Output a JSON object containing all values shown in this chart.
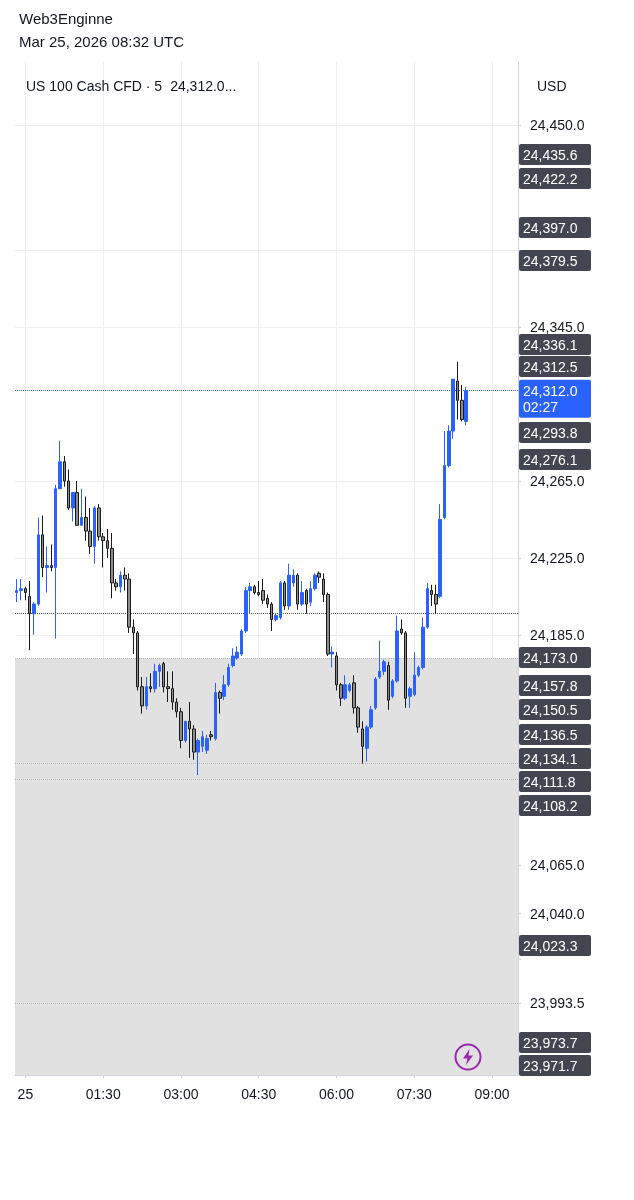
{
  "chart_data": {
    "type": "candlestick",
    "title": "Web3Enginne",
    "subtitle": "Mar 25, 2026 08:32 UTC",
    "ylabel": "USD",
    "annotations": [
      "US 100 Cash CFD · 5",
      "24,312.0...",
      "24,435.6",
      "24,422.2",
      "24,397.0",
      "24,379.5",
      "24,336.1",
      "24,312.5",
      "24,293.8",
      "24,276.1",
      "24,173.0",
      "24,157.8",
      "24,150.5",
      "24,136.5",
      "24,134.1",
      "24,111.8",
      "24,108.2",
      "24,023.3",
      "23,973.7",
      "23,971.7"
    ],
    "x": [
      "2026-03-24T23:50",
      "2026-03-24T23:55",
      "2026-03-25T00:00",
      "2026-03-25T00:05",
      "2026-03-25T00:10",
      "2026-03-25T00:15",
      "2026-03-25T00:20",
      "2026-03-25T00:25",
      "2026-03-25T00:30",
      "2026-03-25T00:35",
      "2026-03-25T00:40",
      "2026-03-25T00:45",
      "2026-03-25T00:50",
      "2026-03-25T00:55",
      "2026-03-25T01:00",
      "2026-03-25T01:05",
      "2026-03-25T01:10",
      "2026-03-25T01:15",
      "2026-03-25T01:20",
      "2026-03-25T01:25",
      "2026-03-25T01:30",
      "2026-03-25T01:35",
      "2026-03-25T01:40",
      "2026-03-25T01:45",
      "2026-03-25T01:50",
      "2026-03-25T01:55",
      "2026-03-25T02:00",
      "2026-03-25T02:05",
      "2026-03-25T02:10",
      "2026-03-25T02:15",
      "2026-03-25T02:20",
      "2026-03-25T02:25",
      "2026-03-25T02:30",
      "2026-03-25T02:35",
      "2026-03-25T02:40",
      "2026-03-25T02:45",
      "2026-03-25T02:50",
      "2026-03-25T02:55",
      "2026-03-25T03:00",
      "2026-03-25T03:05",
      "2026-03-25T03:10",
      "2026-03-25T03:15",
      "2026-03-25T03:20",
      "2026-03-25T03:25",
      "2026-03-25T03:30",
      "2026-03-25T03:35",
      "2026-03-25T03:40",
      "2026-03-25T03:45",
      "2026-03-25T03:50",
      "2026-03-25T03:55",
      "2026-03-25T04:00",
      "2026-03-25T04:05",
      "2026-03-25T04:10",
      "2026-03-25T04:15",
      "2026-03-25T04:20",
      "2026-03-25T04:25",
      "2026-03-25T04:30",
      "2026-03-25T04:35",
      "2026-03-25T04:40",
      "2026-03-25T04:45",
      "2026-03-25T04:50",
      "2026-03-25T04:55",
      "2026-03-25T05:00",
      "2026-03-25T05:05",
      "2026-03-25T05:10",
      "2026-03-25T05:15",
      "2026-03-25T05:20",
      "2026-03-25T05:25",
      "2026-03-25T05:30",
      "2026-03-25T05:35",
      "2026-03-25T05:40",
      "2026-03-25T05:45",
      "2026-03-25T05:50",
      "2026-03-25T05:55",
      "2026-03-25T06:00",
      "2026-03-25T06:05",
      "2026-03-25T06:10",
      "2026-03-25T06:15",
      "2026-03-25T06:20",
      "2026-03-25T06:25",
      "2026-03-25T06:30",
      "2026-03-25T06:35",
      "2026-03-25T06:40",
      "2026-03-25T06:45",
      "2026-03-25T06:50",
      "2026-03-25T06:55",
      "2026-03-25T07:00",
      "2026-03-25T07:05",
      "2026-03-25T07:10",
      "2026-03-25T07:15",
      "2026-03-25T07:20",
      "2026-03-25T07:25",
      "2026-03-25T07:30",
      "2026-03-25T07:35",
      "2026-03-25T07:40",
      "2026-03-25T07:45",
      "2026-03-25T07:50",
      "2026-03-25T07:55",
      "2026-03-25T08:00",
      "2026-03-25T08:05",
      "2026-03-25T08:10",
      "2026-03-25T08:15",
      "2026-03-25T08:20",
      "2026-03-25T08:25",
      "2026-03-25T08:30"
    ],
    "ohlc": [
      [
        24207,
        24214,
        24202,
        24208
      ],
      [
        24208,
        24214,
        24203,
        24209
      ],
      [
        24209,
        24210,
        24203,
        24207
      ],
      [
        24205,
        24213,
        24177,
        24196
      ],
      [
        24196,
        24202,
        24185,
        24201
      ],
      [
        24201,
        24246,
        24200,
        24237
      ],
      [
        24237,
        24247,
        24215,
        24220
      ],
      [
        24220,
        24231,
        24207,
        24221
      ],
      [
        24221,
        24232,
        24218,
        24220
      ],
      [
        24220,
        24263,
        24183,
        24261
      ],
      [
        24261,
        24286,
        24261,
        24275
      ],
      [
        24275,
        24278,
        24262,
        24265
      ],
      [
        24265,
        24271,
        24250,
        24251
      ],
      [
        24251,
        24259,
        24244,
        24259
      ],
      [
        24259,
        24265,
        24242,
        24242
      ],
      [
        24242,
        24261,
        24242,
        24246
      ],
      [
        24246,
        24257,
        24234,
        24239
      ],
      [
        24239,
        24251,
        24227,
        24231
      ],
      [
        24231,
        24252,
        24222,
        24251
      ],
      [
        24251,
        24253,
        24234,
        24236
      ],
      [
        24236,
        24238,
        24220,
        24234
      ],
      [
        24234,
        24240,
        24225,
        24230
      ],
      [
        24230,
        24238,
        24204,
        24212
      ],
      [
        24212,
        24214,
        24208,
        24210
      ],
      [
        24210,
        24218,
        24207,
        24216
      ],
      [
        24216,
        24220,
        24208,
        24214
      ],
      [
        24214,
        24217,
        24186,
        24189
      ],
      [
        24189,
        24193,
        24175,
        24186
      ],
      [
        24186,
        24187,
        24156,
        24158
      ],
      [
        24158,
        24163,
        24144,
        24148
      ],
      [
        24148,
        24163,
        24146,
        24158
      ],
      [
        24158,
        24165,
        24155,
        24157
      ],
      [
        24157,
        24170,
        24155,
        24166
      ],
      [
        24166,
        24170,
        24158,
        24169
      ],
      [
        24170,
        24171,
        24155,
        24158
      ],
      [
        24158,
        24166,
        24150,
        24157
      ],
      [
        24157,
        24166,
        24146,
        24150
      ],
      [
        24150,
        24152,
        24142,
        24145
      ],
      [
        24145,
        24147,
        24126,
        24130
      ],
      [
        24130,
        24140,
        24129,
        24140
      ],
      [
        24140,
        24150,
        24121,
        24136
      ],
      [
        24136,
        24138,
        24120,
        24124
      ],
      [
        24124,
        24131,
        24112,
        24130
      ],
      [
        24127,
        24135,
        24124,
        24132
      ],
      [
        24125,
        24133,
        24123,
        24131
      ],
      [
        24133,
        24135,
        24130,
        24132
      ],
      [
        24131,
        24160,
        24130,
        24155
      ],
      [
        24155,
        24156,
        24144,
        24152
      ],
      [
        24153,
        24164,
        24151,
        24159
      ],
      [
        24159,
        24170,
        24158,
        24168
      ],
      [
        24169,
        24178,
        24168,
        24174
      ],
      [
        24173,
        24179,
        24172,
        24176
      ],
      [
        24175,
        24188,
        24174,
        24187
      ],
      [
        24187,
        24210,
        24186,
        24208
      ],
      [
        24208,
        24212,
        24196,
        24210
      ],
      [
        24210,
        24211,
        24206,
        24207
      ],
      [
        24207,
        24213,
        24205,
        24206
      ],
      [
        24208,
        24214,
        24201,
        24203
      ],
      [
        24204,
        24206,
        24199,
        24201
      ],
      [
        24201,
        24202,
        24187,
        24193
      ],
      [
        24193,
        24196,
        24192,
        24195
      ],
      [
        24194,
        24213,
        24193,
        24212
      ],
      [
        24212,
        24213,
        24198,
        24200
      ],
      [
        24200,
        24222,
        24198,
        24216
      ],
      [
        24212,
        24219,
        24210,
        24216
      ],
      [
        24216,
        24217,
        24198,
        24201
      ],
      [
        24201,
        24213,
        24200,
        24207
      ],
      [
        24208,
        24209,
        24196,
        24201
      ],
      [
        24202,
        24213,
        24200,
        24209
      ],
      [
        24209,
        24217,
        24208,
        24216
      ],
      [
        24217,
        24218,
        24212,
        24215
      ],
      [
        24214,
        24217,
        24202,
        24206
      ],
      [
        24206,
        24207,
        24174,
        24175
      ],
      [
        24175,
        24179,
        24168,
        24176
      ],
      [
        24174,
        24176,
        24156,
        24159
      ],
      [
        24159,
        24160,
        24148,
        24152
      ],
      [
        24152,
        24164,
        24151,
        24159
      ],
      [
        24156,
        24160,
        24155,
        24159
      ],
      [
        24160,
        24164,
        24144,
        24147
      ],
      [
        24147,
        24148,
        24134,
        24137
      ],
      [
        24136,
        24140,
        24118,
        24127
      ],
      [
        24126,
        24138,
        24119,
        24137
      ],
      [
        24137,
        24148,
        24136,
        24146
      ],
      [
        24147,
        24163,
        24146,
        24162
      ],
      [
        24163,
        24182,
        24162,
        24166
      ],
      [
        24166,
        24172,
        24164,
        24171
      ],
      [
        24169,
        24171,
        24146,
        24151
      ],
      [
        24153,
        24162,
        24152,
        24161
      ],
      [
        24161,
        24195,
        24160,
        24187
      ],
      [
        24188,
        24193,
        24185,
        24186
      ],
      [
        24186,
        24187,
        24147,
        24152
      ],
      [
        24153,
        24158,
        24147,
        24157
      ],
      [
        24154,
        24176,
        24153,
        24164
      ],
      [
        24164,
        24169,
        24163,
        24168
      ],
      [
        24168,
        24194,
        24167,
        24189
      ],
      [
        24189,
        24212,
        24188,
        24209
      ],
      [
        24208,
        24211,
        24200,
        24206
      ],
      [
        24206,
        24211,
        24196,
        24201
      ],
      [
        24205,
        24253,
        24204,
        24245
      ],
      [
        24246,
        24291,
        24245,
        24273
      ],
      [
        24273,
        24294,
        24272,
        24291
      ],
      [
        24291,
        24318,
        24287,
        24318
      ],
      [
        24317,
        24327,
        24297,
        24307
      ],
      [
        24307,
        24315,
        24296,
        24297
      ],
      [
        24296,
        24314,
        24294,
        24312.0
      ]
    ],
    "xlim": [
      "2026-03-24T23:48",
      "2026-03-25T09:30"
    ],
    "xticks": [
      {
        "value": "2026-03-25T00:00",
        "label": "25"
      },
      {
        "value": "2026-03-25T01:30",
        "label": "01:30"
      },
      {
        "value": "2026-03-25T03:00",
        "label": "03:00"
      },
      {
        "value": "2026-03-25T04:30",
        "label": "04:30"
      },
      {
        "value": "2026-03-25T06:00",
        "label": "06:00"
      },
      {
        "value": "2026-03-25T07:30",
        "label": "07:30"
      },
      {
        "value": "2026-03-25T09:00",
        "label": "09:00"
      }
    ],
    "ylim": [
      23956,
      24483
    ],
    "yticks": [
      {
        "value": 24450,
        "label": "24,450.0"
      },
      {
        "value": 24385,
        "label": null
      },
      {
        "value": 24345,
        "label": "24,345.0"
      },
      {
        "value": 24265,
        "label": "24,265.0"
      },
      {
        "value": 24225,
        "label": "24,225.0"
      },
      {
        "value": 24185,
        "label": "24,185.0"
      },
      {
        "value": 24065,
        "label": "24,065.0"
      },
      {
        "value": 24040,
        "label": "24,040.0"
      },
      {
        "value": 24016,
        "label": null
      },
      {
        "value": 23993.5,
        "label": "23,993.5"
      }
    ],
    "ref_lines": [
      {
        "axis": "y",
        "value": 24312.0,
        "label": "24,312.0\n02:27",
        "color": "#2962ff",
        "line_style": "dotted"
      },
      {
        "axis": "y",
        "value": 24196,
        "color": "#555555",
        "line_style": "dotted"
      },
      {
        "axis": "y",
        "value": 24173,
        "color": "#b8b8b8",
        "line_style": "dotted"
      },
      {
        "axis": "y",
        "value": 24118,
        "color": "#b8b8b8",
        "line_style": "dotted"
      },
      {
        "axis": "y",
        "value": 24110,
        "color": "#b8b8b8",
        "line_style": "dotted"
      },
      {
        "axis": "y",
        "value": 23993.5,
        "color": "#b8b8b8",
        "line_style": "dotted"
      }
    ],
    "bands": [
      {
        "axis": "y",
        "from": 23956,
        "to": 24173,
        "color": "#e1e1e1"
      }
    ],
    "grid": true
  }
}
